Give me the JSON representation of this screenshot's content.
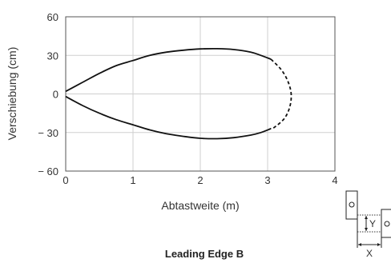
{
  "chart_data": {
    "type": "line",
    "title": "Leading Edge B",
    "xlabel": "Abtastweite (m)",
    "ylabel": "Verschiebung (cm)",
    "xlim": [
      0,
      4
    ],
    "ylim": [
      -60,
      60
    ],
    "x_ticks": [
      "0",
      "1",
      "2",
      "3",
      "4"
    ],
    "y_ticks": [
      "60",
      "30",
      "0",
      "− 30",
      "− 60"
    ],
    "x_tick_values": [
      0,
      1,
      2,
      3,
      4
    ],
    "y_tick_values": [
      60,
      30,
      0,
      -30,
      -60
    ],
    "grid": true,
    "series": [
      {
        "style": "solid",
        "color": "#111111",
        "x": [
          0,
          0.25,
          0.5,
          0.75,
          1.0,
          1.25,
          1.5,
          1.75,
          2.0,
          2.25,
          2.5,
          2.75,
          2.9,
          3.05
        ],
        "y": [
          2,
          9,
          16,
          22,
          26,
          30,
          32.5,
          34,
          35,
          35.2,
          34.5,
          32.5,
          30,
          27
        ]
      },
      {
        "style": "dashed",
        "color": "#111111",
        "x": [
          3.05,
          3.2,
          3.3,
          3.35,
          3.33,
          3.25,
          3.1,
          3.05
        ],
        "y": [
          27,
          19,
          10,
          0,
          -10,
          -19,
          -26,
          -27
        ]
      },
      {
        "style": "solid",
        "color": "#111111",
        "x": [
          0,
          0.25,
          0.5,
          0.75,
          1.0,
          1.25,
          1.5,
          1.75,
          2.0,
          2.25,
          2.5,
          2.75,
          2.9,
          3.05
        ],
        "y": [
          -2,
          -9,
          -15,
          -20,
          -24,
          -28,
          -31,
          -33,
          -34.5,
          -34.8,
          -34,
          -32,
          -30,
          -27
        ]
      }
    ]
  },
  "diagram": {
    "y_label": "Y",
    "x_label": "X"
  }
}
